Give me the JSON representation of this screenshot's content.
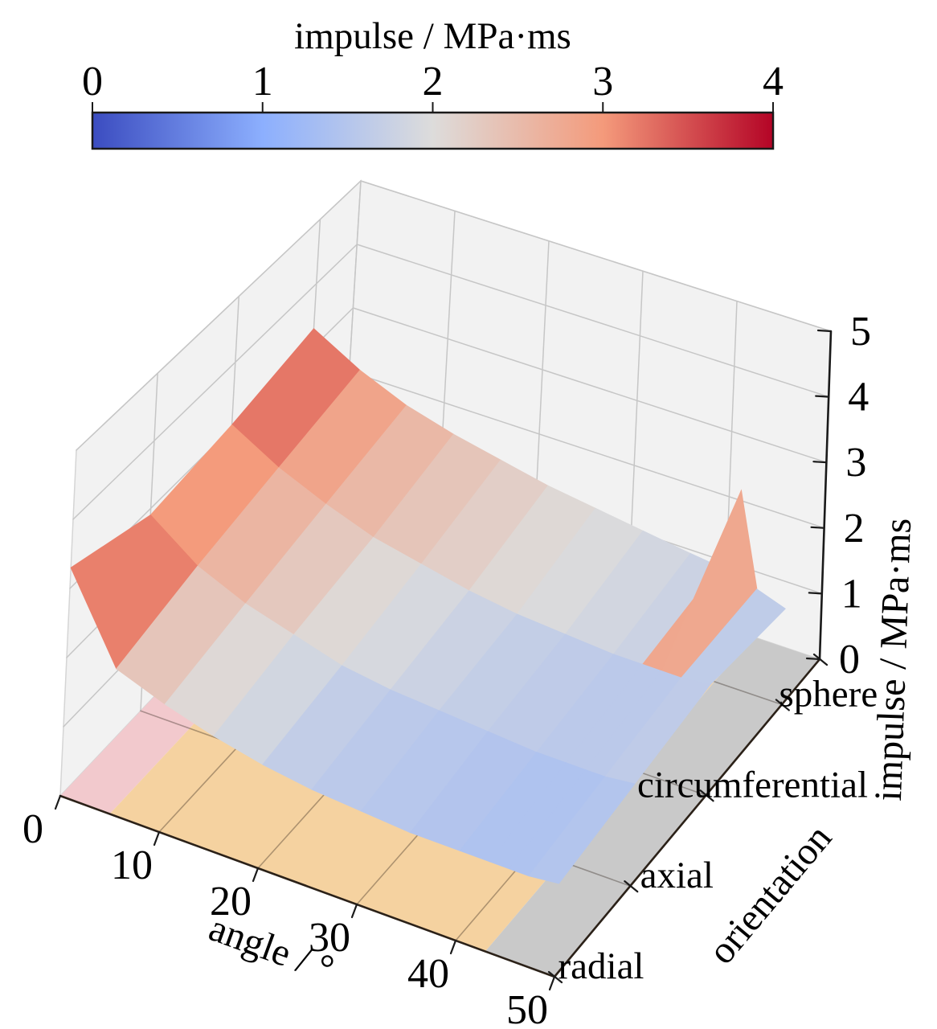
{
  "colorbar": {
    "title": "impulse / MPa·ms",
    "tick_labels": [
      "0",
      "1",
      "2",
      "3",
      "4"
    ],
    "min": 0,
    "max": 4,
    "colormap": "coolwarm"
  },
  "chart_data": {
    "type": "surface",
    "title": "",
    "xlabel": "angle / °",
    "ylabel": "orientation",
    "zlabel": "impulse / MPa·ms",
    "x_ticks": [
      0,
      10,
      20,
      30,
      40,
      50
    ],
    "z_ticks": [
      0,
      1,
      2,
      3,
      4,
      5
    ],
    "y_categories": [
      "radial",
      "axial",
      "circumferential",
      "sphere"
    ],
    "x": [
      0,
      5,
      10,
      15,
      20,
      25,
      30,
      35,
      40,
      43,
      45,
      47,
      50
    ],
    "series": [
      {
        "name": "radial",
        "values": [
          3.3,
          2.1,
          1.85,
          1.65,
          1.5,
          1.4,
          1.35,
          1.3,
          1.3,
          1.3,
          1.3,
          1.3,
          1.35
        ]
      },
      {
        "name": "axial",
        "values": [
          2.9,
          2.4,
          2.1,
          1.9,
          1.7,
          1.6,
          1.55,
          1.5,
          1.45,
          1.45,
          1.45,
          1.45,
          1.5
        ]
      },
      {
        "name": "circumferential",
        "values": [
          3.05,
          2.65,
          2.35,
          2.1,
          1.95,
          1.8,
          1.7,
          1.65,
          1.6,
          1.6,
          1.6,
          1.6,
          1.65
        ]
      },
      {
        "name": "sphere",
        "values": [
          3.3,
          2.9,
          2.6,
          2.4,
          2.25,
          2.1,
          2.0,
          1.9,
          1.8,
          1.75,
          3.0,
          1.6,
          1.45
        ]
      }
    ],
    "xlim": [
      0,
      50
    ],
    "zlim": [
      0,
      5
    ],
    "clim": [
      0,
      4
    ],
    "colormap": "coolwarm",
    "grid": true,
    "floor_regions": [
      {
        "x_from": 0,
        "x_to": 5,
        "color": "#f2c9cd"
      },
      {
        "x_from": 5,
        "x_to": 43,
        "color": "#f5d2a0"
      },
      {
        "x_from": 43,
        "x_to": 50,
        "color": "#c9c9c9"
      }
    ],
    "colors": {
      "pane": "#f2f2f2",
      "pane_grid": "#c6c6c6",
      "pane_edge": "#d5d5d5",
      "floor_grid": "rgba(40,30,20,0.35)",
      "axis_line": "#1a1a1a",
      "text": "#000000"
    }
  }
}
